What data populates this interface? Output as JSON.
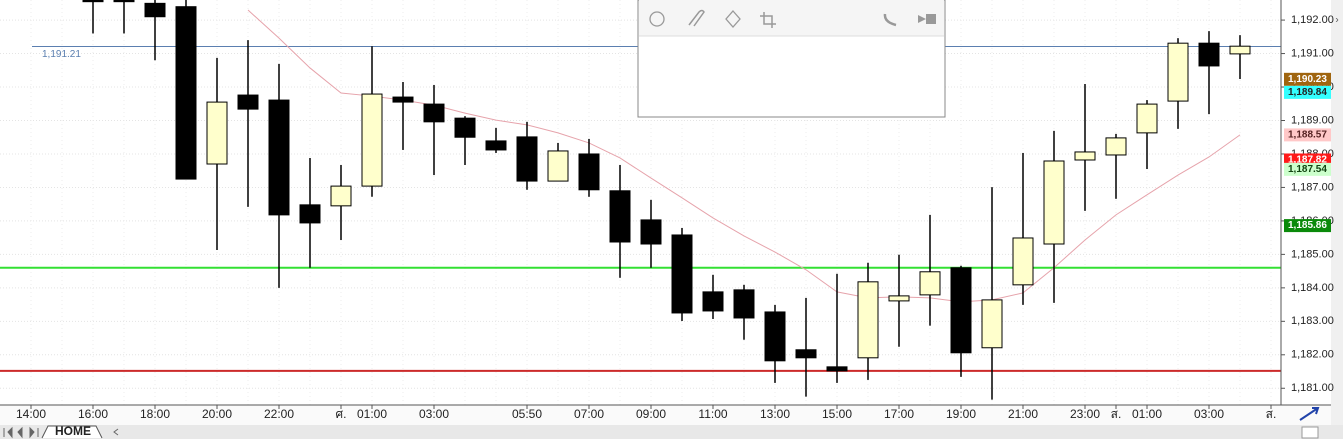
{
  "chart_data": {
    "type": "candlestick",
    "categories": [
      "14:00",
      null,
      "16:00",
      null,
      "18:00",
      null,
      "20:00",
      null,
      "22:00",
      null,
      "ศ.",
      "01:00",
      null,
      "03:00",
      null,
      null,
      "05:50",
      null,
      "07:00",
      null,
      "09:00",
      null,
      "11:00",
      null,
      "13:00",
      null,
      "15:00",
      null,
      "17:00",
      null,
      "19:00",
      null,
      "21:00",
      null,
      "23:00",
      "ส.",
      "01:00",
      null,
      "03:00",
      null,
      "ส."
    ],
    "open": [
      null,
      null,
      1192.7,
      1192.7,
      1192.5,
      1192.4,
      1187.7,
      1189.76,
      1189.61,
      1186.48,
      1186.45,
      1187.04,
      1189.7,
      1189.49,
      1189.07,
      1188.39,
      1188.51,
      1187.19,
      1188.0,
      1186.9,
      1186.03,
      1185.58,
      1183.88,
      1183.94,
      1183.28,
      1182.15,
      1181.64,
      1181.91,
      1183.61,
      1183.79,
      1184.6,
      1182.21,
      1184.09,
      1185.31,
      1187.82,
      1187.97,
      1188.63,
      1189.58,
      1191.31,
      1190.99,
      null
    ],
    "high": [
      null,
      null,
      1192.8,
      1192.8,
      1192.8,
      1192.7,
      1190.87,
      1191.4,
      1190.69,
      1187.88,
      1187.67,
      1191.22,
      1190.15,
      1190.06,
      1189.13,
      1188.78,
      1188.96,
      1188.33,
      1188.45,
      1187.67,
      1186.63,
      1185.79,
      1184.39,
      1184.09,
      1183.49,
      1183.7,
      1184.42,
      1184.75,
      1184.99,
      1186.18,
      1184.66,
      1187.01,
      1188.03,
      1188.69,
      1190.09,
      1188.6,
      1189.61,
      1191.46,
      1191.67,
      1191.55,
      null
    ],
    "low": [
      null,
      null,
      1191.6,
      1191.6,
      1190.8,
      1187.25,
      1185.13,
      1186.42,
      1184.0,
      1184.6,
      1185.43,
      1186.72,
      1188.12,
      1187.37,
      1187.67,
      1188.03,
      1186.93,
      1187.19,
      1186.72,
      1184.3,
      1184.6,
      1183.01,
      1183.07,
      1182.45,
      1181.16,
      1180.75,
      1181.16,
      1181.25,
      1182.24,
      1182.87,
      1181.34,
      1180.66,
      1183.49,
      1183.55,
      1186.3,
      1186.66,
      1187.55,
      1188.75,
      1189.19,
      1190.24,
      null
    ],
    "close": [
      null,
      null,
      1192.55,
      1192.55,
      1192.1,
      1187.25,
      1189.55,
      1189.34,
      1186.18,
      1185.94,
      1187.04,
      1189.79,
      1189.55,
      1188.96,
      1188.5,
      1188.12,
      1187.19,
      1188.09,
      1186.93,
      1185.37,
      1185.31,
      1183.25,
      1183.31,
      1183.1,
      1181.82,
      1181.91,
      1181.52,
      1184.18,
      1183.76,
      1184.48,
      1182.06,
      1183.64,
      1185.49,
      1187.79,
      1188.06,
      1188.48,
      1189.49,
      1191.31,
      1190.63,
      1191.22,
      null
    ],
    "up_color": "#ffffcc",
    "down_color": "#000000",
    "ma": {
      "color": "#e6a3ab",
      "values": [
        null,
        null,
        null,
        null,
        null,
        null,
        null,
        1192.3,
        1191.46,
        1190.57,
        1189.82,
        1189.73,
        1189.61,
        1189.46,
        1189.22,
        1189.01,
        1188.87,
        1188.63,
        1188.33,
        1187.88,
        1187.28,
        1186.69,
        1186.09,
        1185.55,
        1185.07,
        1184.54,
        1183.88,
        1183.7,
        1183.73,
        1183.7,
        1183.58,
        1183.64,
        1183.85,
        1184.6,
        1185.43,
        1186.18,
        1186.78,
        1187.37,
        1187.91,
        1188.57,
        null
      ]
    },
    "ylim": [
      1180.5,
      1192.6
    ],
    "yticks": [
      {
        "value": 1181,
        "label": "1,181.00"
      },
      {
        "value": 1182,
        "label": "1,182.00"
      },
      {
        "value": 1183,
        "label": "1,183.00"
      },
      {
        "value": 1184,
        "label": "1,184.00"
      },
      {
        "value": 1185,
        "label": "1,185.00"
      },
      {
        "value": 1186,
        "label": "1,186.00"
      },
      {
        "value": 1187,
        "label": "1,187.00"
      },
      {
        "value": 1188,
        "label": "1,188.00"
      },
      {
        "value": 1189,
        "label": "1,189.00"
      },
      {
        "value": 1190,
        "label": "1,190.00"
      },
      {
        "value": 1191,
        "label": "1,191.00"
      },
      {
        "value": 1192,
        "label": "1,192.00"
      }
    ],
    "grid": true,
    "hlines": [
      {
        "value": 1191.21,
        "label": "1,191.21",
        "color": "#5b7fb0"
      },
      {
        "value": 1184.6,
        "color": "#33e033"
      },
      {
        "value": 1181.52,
        "color": "#cc2a2a"
      }
    ],
    "price_tags": [
      {
        "value": 1190.23,
        "label": "1,190.23",
        "color": "#a0650f",
        "text_color": "#ffffff"
      },
      {
        "value": 1189.84,
        "label": "1,189.84",
        "color": "#33ffff",
        "text_color": "#222222"
      },
      {
        "value": 1188.57,
        "label": "1,188.57",
        "color": "#ffc8c8",
        "text_color": "#552222"
      },
      {
        "value": 1187.82,
        "label": "1,187.82",
        "color": "#ff1a1a",
        "text_color": "#ffffff"
      },
      {
        "value": 1187.54,
        "label": "1,187.54",
        "color": "#ccffcc",
        "text_color": "#114411"
      },
      {
        "value": 1185.86,
        "label": "1,185.86",
        "color": "#0a8a0a",
        "text_color": "#ffffff"
      }
    ]
  },
  "ui": {
    "tab": "HOME"
  }
}
